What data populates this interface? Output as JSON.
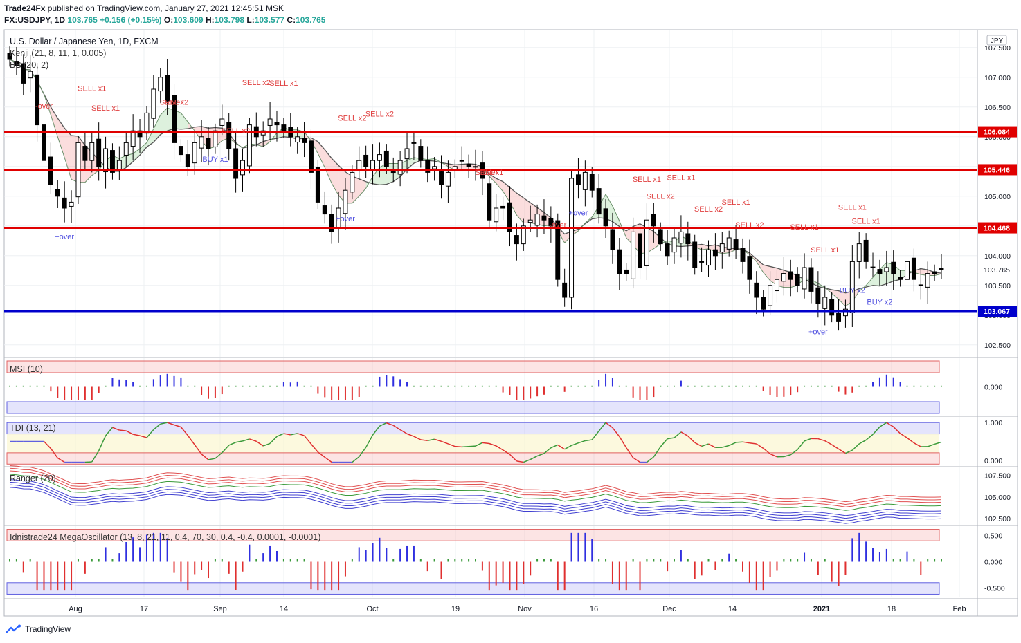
{
  "header": {
    "publisher": "Trade24Fx",
    "published_text": "published on TradingView.com, January 27, 2021 12:45:51 MSK",
    "symbol": "FX:USDJPY",
    "interval": "1D",
    "last": "103.765",
    "change": "+0.156 (+0.15%)",
    "ohlc": {
      "o_label": "O:",
      "o": "103.609",
      "h_label": "H:",
      "h": "103.798",
      "l_label": "L:",
      "l": "103.577",
      "c_label": "C:",
      "c": "103.765"
    }
  },
  "main_pane": {
    "title": "U.S. Dollar / Japanese Yen, 1D, FXCM",
    "indicator1": "Kenji (21, 8, 11, 1, 0.005)",
    "indicator2": "BB (20, 2)",
    "currency_badge": "JPY",
    "colors": {
      "up": "#ffffff",
      "down": "#000000",
      "support_line": "#0000cc",
      "resistance_line": "#e00000",
      "sell": "#e04040",
      "buy": "#5050e0"
    }
  },
  "chart_data": [
    {
      "type": "candlestick",
      "title": "U.S. Dollar / Japanese Yen, 1D, FXCM",
      "y_ticks": [
        "107.500",
        "107.000",
        "106.500",
        "106.000",
        "105.500",
        "105.000",
        "104.500",
        "104.000",
        "103.500",
        "103.000",
        "102.500"
      ],
      "ylim": [
        102.3,
        107.8
      ],
      "x_labels": [
        "Aug",
        "17",
        "Sep",
        "14",
        "Oct",
        "19",
        "Nov",
        "16",
        "Dec",
        "14",
        "2021",
        "18",
        "Feb"
      ],
      "horizontal_levels": [
        {
          "value": 106.084,
          "label": "106.084",
          "color": "#e00000"
        },
        {
          "value": 105.446,
          "label": "105.446",
          "color": "#e00000"
        },
        {
          "value": 104.468,
          "label": "104.468",
          "color": "#e00000"
        },
        {
          "value": 103.067,
          "label": "103.067",
          "color": "#0000cc"
        }
      ],
      "last_price": {
        "value": 103.765,
        "label": "103.765"
      },
      "close_series": [
        107.3,
        107.2,
        106.9,
        107.1,
        106.2,
        105.6,
        105.2,
        105.0,
        104.8,
        104.9,
        105.9,
        105.6,
        105.9,
        105.5,
        105.8,
        105.4,
        105.6,
        105.9,
        106.1,
        106.0,
        106.4,
        106.8,
        107.0,
        106.6,
        105.9,
        105.7,
        105.5,
        105.9,
        106.0,
        105.8,
        106.1,
        106.3,
        105.8,
        105.3,
        105.6,
        106.2,
        106.0,
        106.1,
        106.3,
        106.2,
        106.1,
        106.0,
        106.0,
        105.9,
        105.4,
        104.9,
        104.7,
        104.4,
        104.8,
        105.1,
        105.4,
        105.6,
        105.5,
        105.6,
        105.7,
        105.5,
        105.4,
        105.6,
        105.8,
        105.9,
        105.6,
        105.4,
        105.5,
        105.2,
        105.4,
        105.5,
        105.6,
        105.5,
        105.5,
        105.3,
        104.6,
        104.8,
        104.8,
        104.4,
        104.2,
        104.5,
        104.6,
        104.7,
        104.6,
        104.5,
        103.6,
        103.3,
        105.3,
        105.2,
        105.4,
        105.1,
        104.7,
        104.5,
        104.1,
        103.7,
        103.7,
        104.4,
        103.8,
        104.6,
        104.5,
        104.2,
        104.0,
        104.3,
        104.4,
        104.2,
        103.8,
        103.9,
        104.1,
        104.0,
        104.2,
        104.3,
        104.1,
        103.9,
        103.6,
        103.3,
        103.1,
        103.5,
        103.6,
        103.7,
        103.6,
        103.5,
        103.8,
        103.4,
        103.2,
        103.3,
        103.0,
        102.9,
        103.1,
        103.9,
        104.2,
        103.9,
        103.8,
        103.7,
        103.8,
        103.7,
        103.6,
        103.9,
        103.6,
        103.5,
        103.7,
        103.7,
        103.765
      ],
      "annotations": [
        {
          "text": "SELL x1",
          "kind": "sell"
        },
        {
          "text": "SELL x2",
          "kind": "sell"
        },
        {
          "text": "SELL x1",
          "kind": "sell"
        },
        {
          "text": "SELL x2",
          "kind": "sell"
        },
        {
          "text": "SELL x1",
          "kind": "sell"
        },
        {
          "text": "SELL x2",
          "kind": "sell"
        },
        {
          "text": "SELL x2",
          "kind": "sell"
        },
        {
          "text": "SELL x1",
          "kind": "sell"
        },
        {
          "text": "SELL x2",
          "kind": "sell"
        },
        {
          "text": "SELL x1",
          "kind": "sell"
        },
        {
          "text": "SELL x2",
          "kind": "sell"
        },
        {
          "text": "SELL x1",
          "kind": "sell"
        },
        {
          "text": "SELL x2",
          "kind": "sell"
        },
        {
          "text": "SELL x1",
          "kind": "sell"
        },
        {
          "text": "SELL x2",
          "kind": "sell"
        },
        {
          "text": "SELL x1",
          "kind": "sell"
        },
        {
          "text": "SELL x1",
          "kind": "sell"
        },
        {
          "text": "SELL x1",
          "kind": "sell"
        },
        {
          "text": "SELL x1",
          "kind": "sell"
        },
        {
          "text": "BUY x1",
          "kind": "buy"
        },
        {
          "text": "BUY x2",
          "kind": "buy"
        },
        {
          "text": "BUY x2",
          "kind": "buy"
        },
        {
          "text": "+over",
          "kind": "buy"
        },
        {
          "text": "+over",
          "kind": "buy"
        },
        {
          "text": "+over",
          "kind": "buy"
        },
        {
          "text": "+over",
          "kind": "buy"
        },
        {
          "text": "-over",
          "kind": "sell"
        },
        {
          "text": "-over",
          "kind": "sell"
        },
        {
          "text": "-over",
          "kind": "sell"
        },
        {
          "text": "-over",
          "kind": "sell"
        }
      ]
    },
    {
      "type": "bar",
      "title": "MSI (10)",
      "y_ticks": [
        "0.000"
      ],
      "ylim": [
        -1,
        1
      ]
    },
    {
      "type": "line",
      "title": "TDI (13, 21)",
      "y_ticks": [
        "1.000",
        "0.000"
      ],
      "ylim": [
        -0.15,
        1.15
      ]
    },
    {
      "type": "line",
      "title": "Ranger (20)",
      "y_ticks": [
        "107.500",
        "105.000",
        "102.500"
      ],
      "ylim": [
        101.8,
        108.4
      ]
    },
    {
      "type": "bar",
      "title": "Idnistrade24 MegaOscillator (13, 8, 21, 11, 0.4, 70, 30, 0.4, -0.4, 0.0001, -0.0001)",
      "y_ticks": [
        "0.500",
        "0.000",
        "-0.500"
      ],
      "ylim": [
        -0.68,
        0.68
      ]
    }
  ],
  "footer": {
    "brand": "TradingView"
  }
}
